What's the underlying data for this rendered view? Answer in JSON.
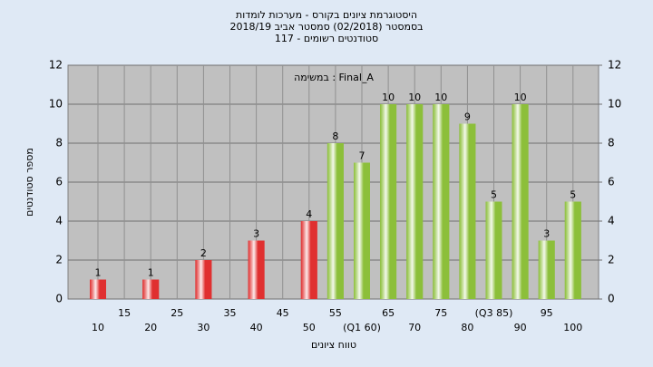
{
  "chart_data": {
    "type": "bar",
    "title": [
      "היסטוגרמת ציונים בקורס - מערכות לומדות",
      "בסמסטר  (02/2018)  סמסטר אביב 2018/19",
      "סטודנטים רשומים - 117"
    ],
    "annotation": "במשימה : Final_A",
    "x_label": "טווח ציונים",
    "y_label": "מספר סטודנטים",
    "categories": [
      "10",
      "15",
      "20",
      "25",
      "30",
      "35",
      "40",
      "45",
      "50",
      "55",
      "(Q1 60)",
      "65",
      "70",
      "75",
      "80",
      "(Q3 85)",
      "90",
      "95",
      "100"
    ],
    "values": [
      1,
      null,
      1,
      null,
      2,
      null,
      3,
      null,
      4,
      8,
      7,
      10,
      10,
      10,
      9,
      5,
      10,
      3,
      5
    ],
    "colors": [
      "#e03030",
      null,
      "#e03030",
      null,
      "#e03030",
      null,
      "#e03030",
      null,
      "#e03030",
      "#8cbf3a",
      "#8cbf3a",
      "#8cbf3a",
      "#8cbf3a",
      "#8cbf3a",
      "#8cbf3a",
      "#8cbf3a",
      "#8cbf3a",
      "#8cbf3a",
      "#8cbf3a"
    ],
    "ylim": [
      0,
      12
    ],
    "yticks": [
      0,
      2,
      4,
      6,
      8,
      10,
      12
    ],
    "y2lim": [
      0,
      12
    ],
    "y2ticks": [
      0,
      2,
      4,
      6,
      8,
      10,
      12
    ],
    "grid": true
  }
}
